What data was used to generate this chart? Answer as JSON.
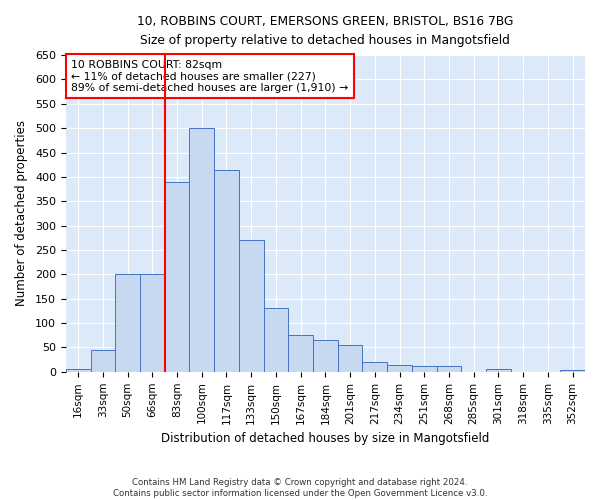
{
  "title_line1": "10, ROBBINS COURT, EMERSONS GREEN, BRISTOL, BS16 7BG",
  "title_line2": "Size of property relative to detached houses in Mangotsfield",
  "xlabel": "Distribution of detached houses by size in Mangotsfield",
  "ylabel": "Number of detached properties",
  "categories": [
    "16sqm",
    "33sqm",
    "50sqm",
    "66sqm",
    "83sqm",
    "100sqm",
    "117sqm",
    "133sqm",
    "150sqm",
    "167sqm",
    "184sqm",
    "201sqm",
    "217sqm",
    "234sqm",
    "251sqm",
    "268sqm",
    "285sqm",
    "301sqm",
    "318sqm",
    "335sqm",
    "352sqm"
  ],
  "values": [
    5,
    45,
    200,
    200,
    390,
    500,
    415,
    270,
    130,
    75,
    65,
    55,
    20,
    15,
    12,
    12,
    0,
    5,
    0,
    0,
    3
  ],
  "bar_color": "#c6d9f0",
  "bar_edge_color": "#4472c4",
  "red_line_x": 4,
  "red_line_label": "10 ROBBINS COURT: 82sqm",
  "annotation_line2": "← 11% of detached houses are smaller (227)",
  "annotation_line3": "89% of semi-detached houses are larger (1,910) →",
  "ylim": [
    0,
    650
  ],
  "yticks": [
    0,
    50,
    100,
    150,
    200,
    250,
    300,
    350,
    400,
    450,
    500,
    550,
    600,
    650
  ],
  "background_color": "#dce9f8",
  "grid_color": "#ffffff",
  "fig_background": "#ffffff",
  "footer_line1": "Contains HM Land Registry data © Crown copyright and database right 2024.",
  "footer_line2": "Contains public sector information licensed under the Open Government Licence v3.0."
}
